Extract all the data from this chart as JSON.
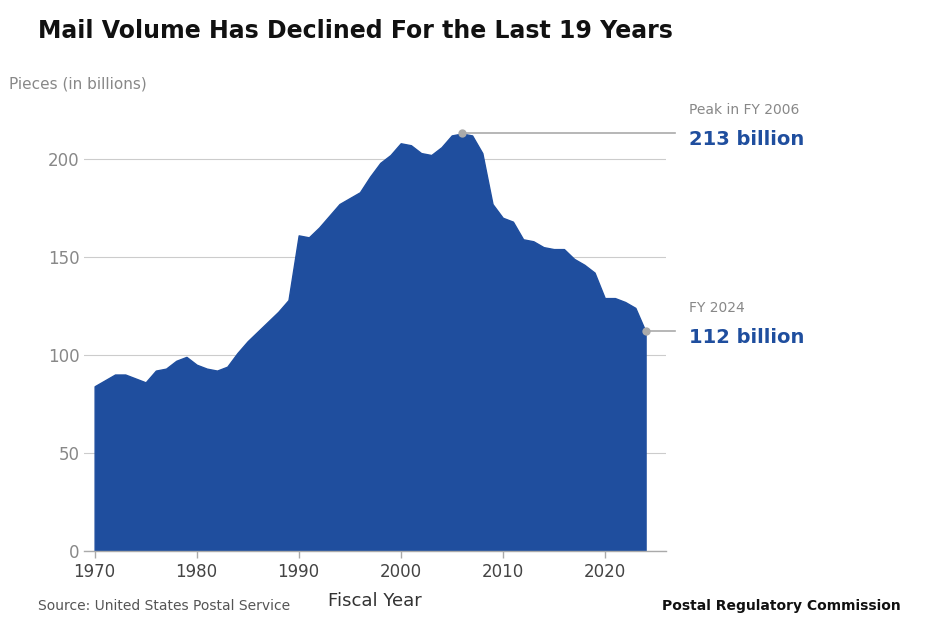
{
  "title": "Mail Volume Has Declined For the Last 19 Years",
  "xlabel": "Fiscal Year",
  "ylabel": "Pieces (in billions)",
  "area_color": "#1f4e9e",
  "background_color": "#ffffff",
  "source_text": "Source: United States Postal Service",
  "credit_text": "Postal Regulatory Commission",
  "annotation_peak_label1": "Peak in FY 2006",
  "annotation_peak_label2": "213 billion",
  "annotation_end_label1": "FY 2024",
  "annotation_end_label2": "112 billion",
  "ylim": [
    0,
    230
  ],
  "xlim": [
    1969,
    2026
  ],
  "yticks": [
    0,
    50,
    100,
    150,
    200
  ],
  "xticks": [
    1970,
    1980,
    1990,
    2000,
    2010,
    2020
  ],
  "years": [
    1970,
    1971,
    1972,
    1973,
    1974,
    1975,
    1976,
    1977,
    1978,
    1979,
    1980,
    1981,
    1982,
    1983,
    1984,
    1985,
    1986,
    1987,
    1988,
    1989,
    1990,
    1991,
    1992,
    1993,
    1994,
    1995,
    1996,
    1997,
    1998,
    1999,
    2000,
    2001,
    2002,
    2003,
    2004,
    2005,
    2006,
    2007,
    2008,
    2009,
    2010,
    2011,
    2012,
    2013,
    2014,
    2015,
    2016,
    2017,
    2018,
    2019,
    2020,
    2021,
    2022,
    2023,
    2024
  ],
  "values": [
    84,
    87,
    90,
    90,
    88,
    86,
    92,
    93,
    97,
    99,
    95,
    93,
    92,
    94,
    101,
    107,
    112,
    117,
    122,
    128,
    161,
    160,
    165,
    171,
    177,
    180,
    183,
    191,
    198,
    202,
    208,
    207,
    203,
    202,
    206,
    212,
    213,
    212,
    203,
    177,
    170,
    168,
    159,
    158,
    155,
    154,
    154,
    149,
    146,
    142,
    129,
    129,
    127,
    124,
    112
  ]
}
